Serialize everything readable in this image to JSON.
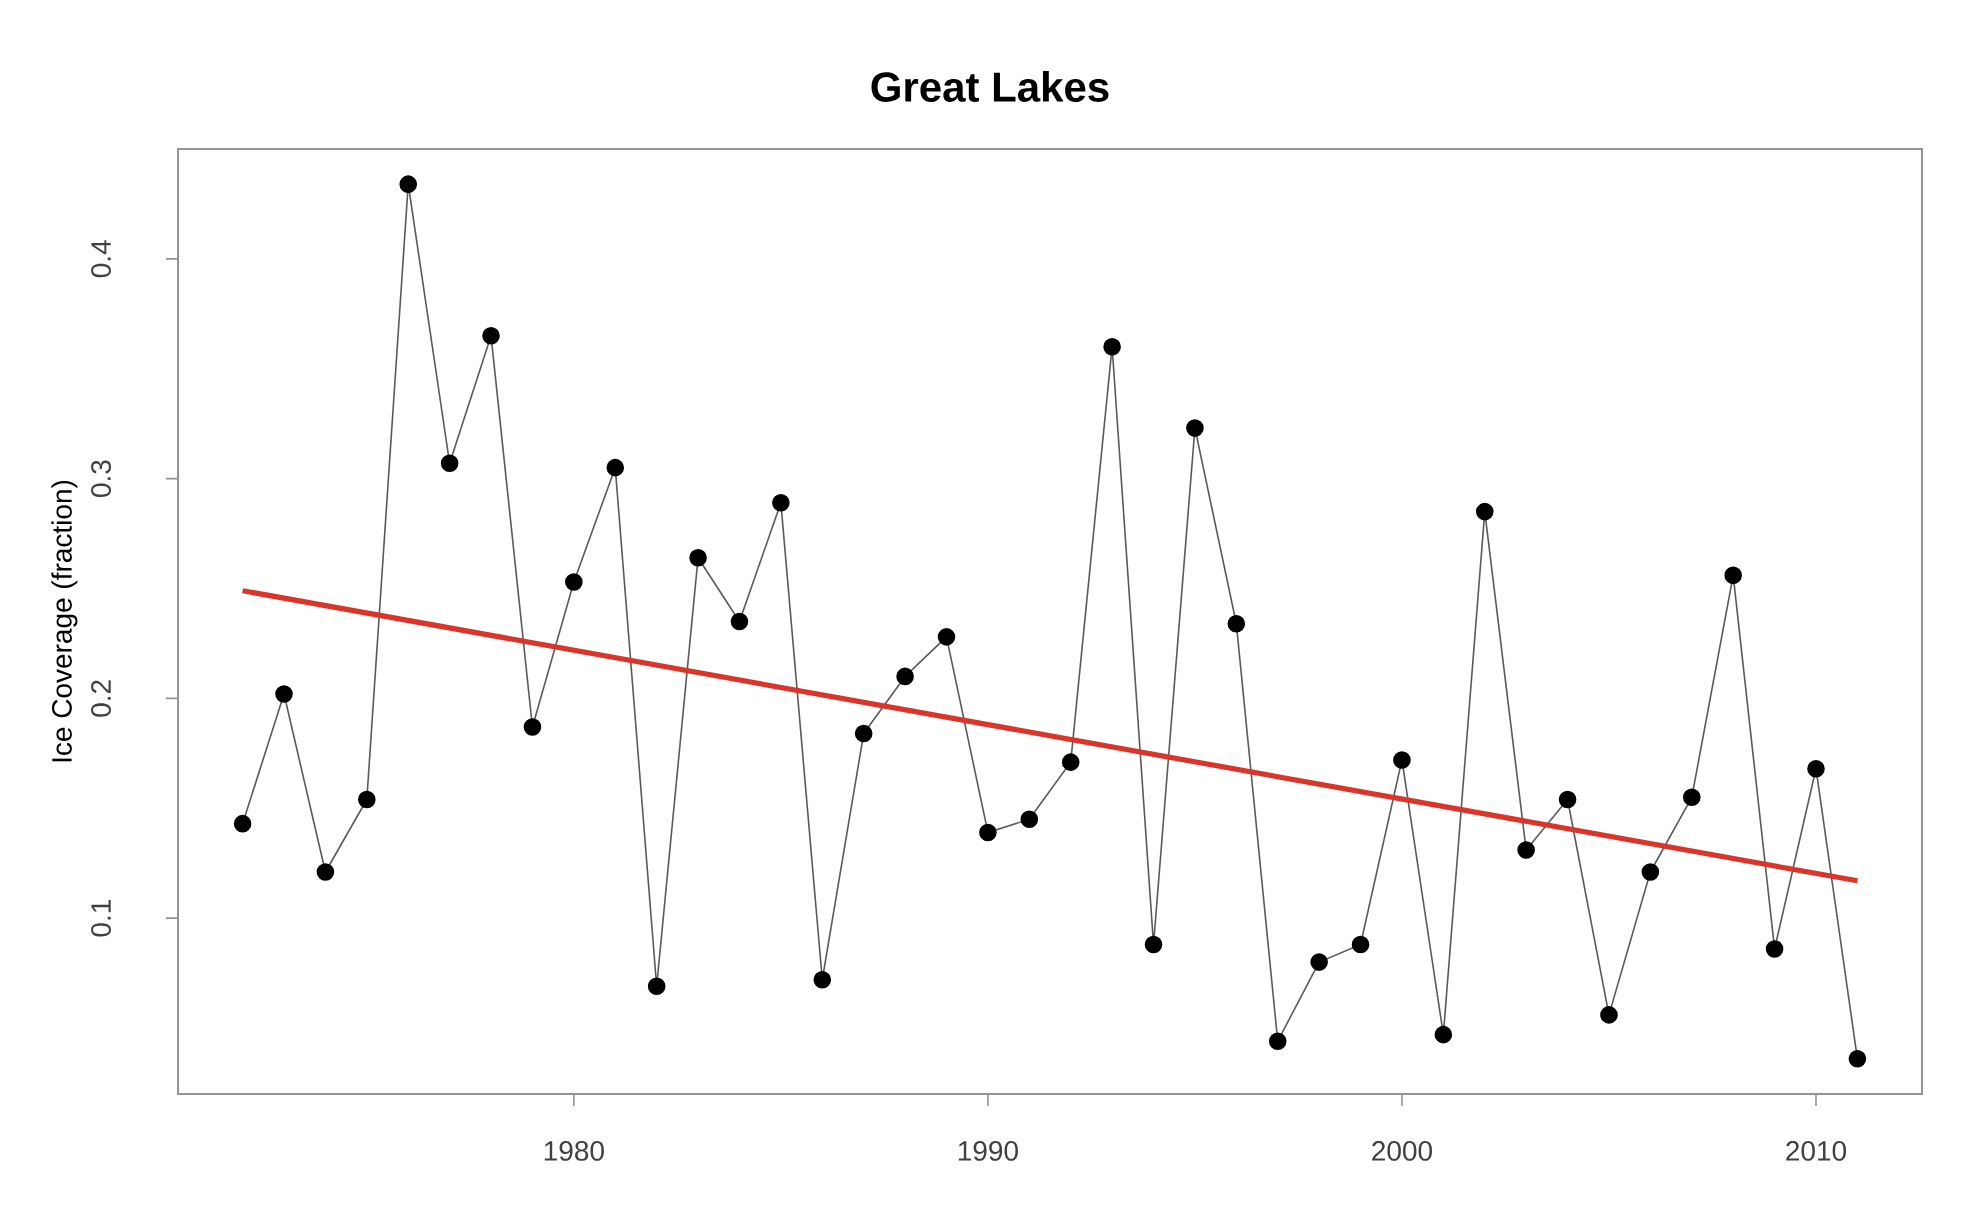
{
  "chart_data": {
    "type": "line",
    "title": "Great Lakes",
    "ylabel": "Ice Coverage (fraction)",
    "xlim": [
      1970.44,
      2012.56
    ],
    "ylim": [
      0.02,
      0.45
    ],
    "xticks": [
      1980,
      1990,
      2000,
      2010
    ],
    "yticks": [
      0.1,
      0.2,
      0.3,
      0.4
    ],
    "grid": false,
    "series": [
      {
        "marker": "circle",
        "color": "#5a5a5a",
        "x": [
          1972,
          1973,
          1974,
          1975,
          1976,
          1977,
          1978,
          1979,
          1980,
          1981,
          1982,
          1983,
          1984,
          1985,
          1986,
          1987,
          1988,
          1989,
          1990,
          1991,
          1992,
          1993,
          1994,
          1995,
          1996,
          1997,
          1998,
          1999,
          2000,
          2001,
          2002,
          2003,
          2004,
          2005,
          2006,
          2007,
          2008,
          2009,
          2010,
          2011
        ],
        "values": [
          0.143,
          0.202,
          0.121,
          0.154,
          0.434,
          0.307,
          0.365,
          0.187,
          0.253,
          0.305,
          0.069,
          0.264,
          0.235,
          0.289,
          0.072,
          0.184,
          0.21,
          0.228,
          0.139,
          0.145,
          0.171,
          0.36,
          0.088,
          0.323,
          0.234,
          0.044,
          0.08,
          0.088,
          0.172,
          0.047,
          0.285,
          0.131,
          0.154,
          0.056,
          0.121,
          0.155,
          0.256,
          0.086,
          0.168,
          0.036
        ]
      },
      {
        "marker": "none",
        "color": "#d9352a",
        "x": [
          1972,
          2011
        ],
        "values": [
          0.249,
          0.117
        ]
      }
    ]
  }
}
